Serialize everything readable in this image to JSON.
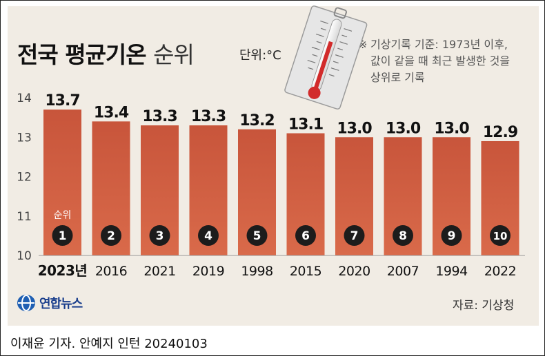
{
  "header": {
    "title": "전국 평균기온",
    "title_suffix": "순위",
    "unit": "단위:°C"
  },
  "note": {
    "mark": "※",
    "text": "기상기록 기준: 1973년 이후,\n값이 같을 때 최근 발생한 것을\n상위로 기록"
  },
  "rank_label": "순위",
  "chart_data": {
    "type": "bar",
    "categories": [
      "2023년",
      "2016",
      "2021",
      "2019",
      "1998",
      "2015",
      "2020",
      "2007",
      "1994",
      "2022"
    ],
    "values": [
      13.7,
      13.4,
      13.3,
      13.3,
      13.2,
      13.1,
      13.0,
      13.0,
      13.0,
      12.9
    ],
    "value_labels": [
      "13.7",
      "13.4",
      "13.3",
      "13.3",
      "13.2",
      "13.1",
      "13.0",
      "13.0",
      "13.0",
      "12.9"
    ],
    "ranks": [
      "1",
      "2",
      "3",
      "4",
      "5",
      "6",
      "7",
      "8",
      "9",
      "10"
    ],
    "yticks": [
      "10",
      "11",
      "12",
      "13",
      "14"
    ],
    "ylim": [
      10,
      14
    ],
    "bar_color": "#cc5a3c",
    "grid": false
  },
  "logo": {
    "text": "연합뉴스"
  },
  "source": "자료: 기상청",
  "credit": "이재윤 기자. 안예지 인턴  20240103"
}
